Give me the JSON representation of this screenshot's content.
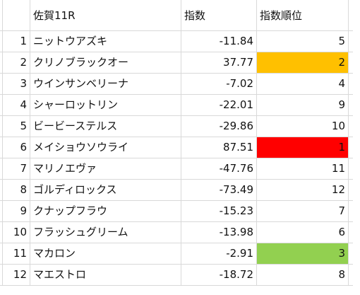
{
  "header": {
    "race": "佐賀11R",
    "index": "指数",
    "rank": "指数順位"
  },
  "colors": {
    "gridline": "#d9d9d9",
    "highlight_orange": "#ffc000",
    "highlight_red": "#ff0000",
    "highlight_green": "#92d050"
  },
  "rows": [
    {
      "num": "1",
      "name": "ニットウアズキ",
      "index": "-11.84",
      "rank": "5",
      "highlight": ""
    },
    {
      "num": "2",
      "name": "クリノブラックオー",
      "index": "37.77",
      "rank": "2",
      "highlight": "#ffc000"
    },
    {
      "num": "3",
      "name": "ウインサンベリーナ",
      "index": "-7.02",
      "rank": "4",
      "highlight": ""
    },
    {
      "num": "4",
      "name": "シャーロットリン",
      "index": "-22.01",
      "rank": "9",
      "highlight": ""
    },
    {
      "num": "5",
      "name": "ビービーステルス",
      "index": "-29.86",
      "rank": "10",
      "highlight": ""
    },
    {
      "num": "6",
      "name": "メイショウソウライ",
      "index": "87.51",
      "rank": "1",
      "highlight": "#ff0000"
    },
    {
      "num": "7",
      "name": "マリノエヴァ",
      "index": "-47.76",
      "rank": "11",
      "highlight": ""
    },
    {
      "num": "8",
      "name": "ゴルディロックス",
      "index": "-73.49",
      "rank": "12",
      "highlight": ""
    },
    {
      "num": "9",
      "name": "クナップフラウ",
      "index": "-15.23",
      "rank": "7",
      "highlight": ""
    },
    {
      "num": "10",
      "name": "フラッシュグリーム",
      "index": "-13.98",
      "rank": "6",
      "highlight": ""
    },
    {
      "num": "11",
      "name": "マカロン",
      "index": "-2.91",
      "rank": "3",
      "highlight": "#92d050"
    },
    {
      "num": "12",
      "name": "マエストロ",
      "index": "-18.72",
      "rank": "8",
      "highlight": ""
    }
  ]
}
